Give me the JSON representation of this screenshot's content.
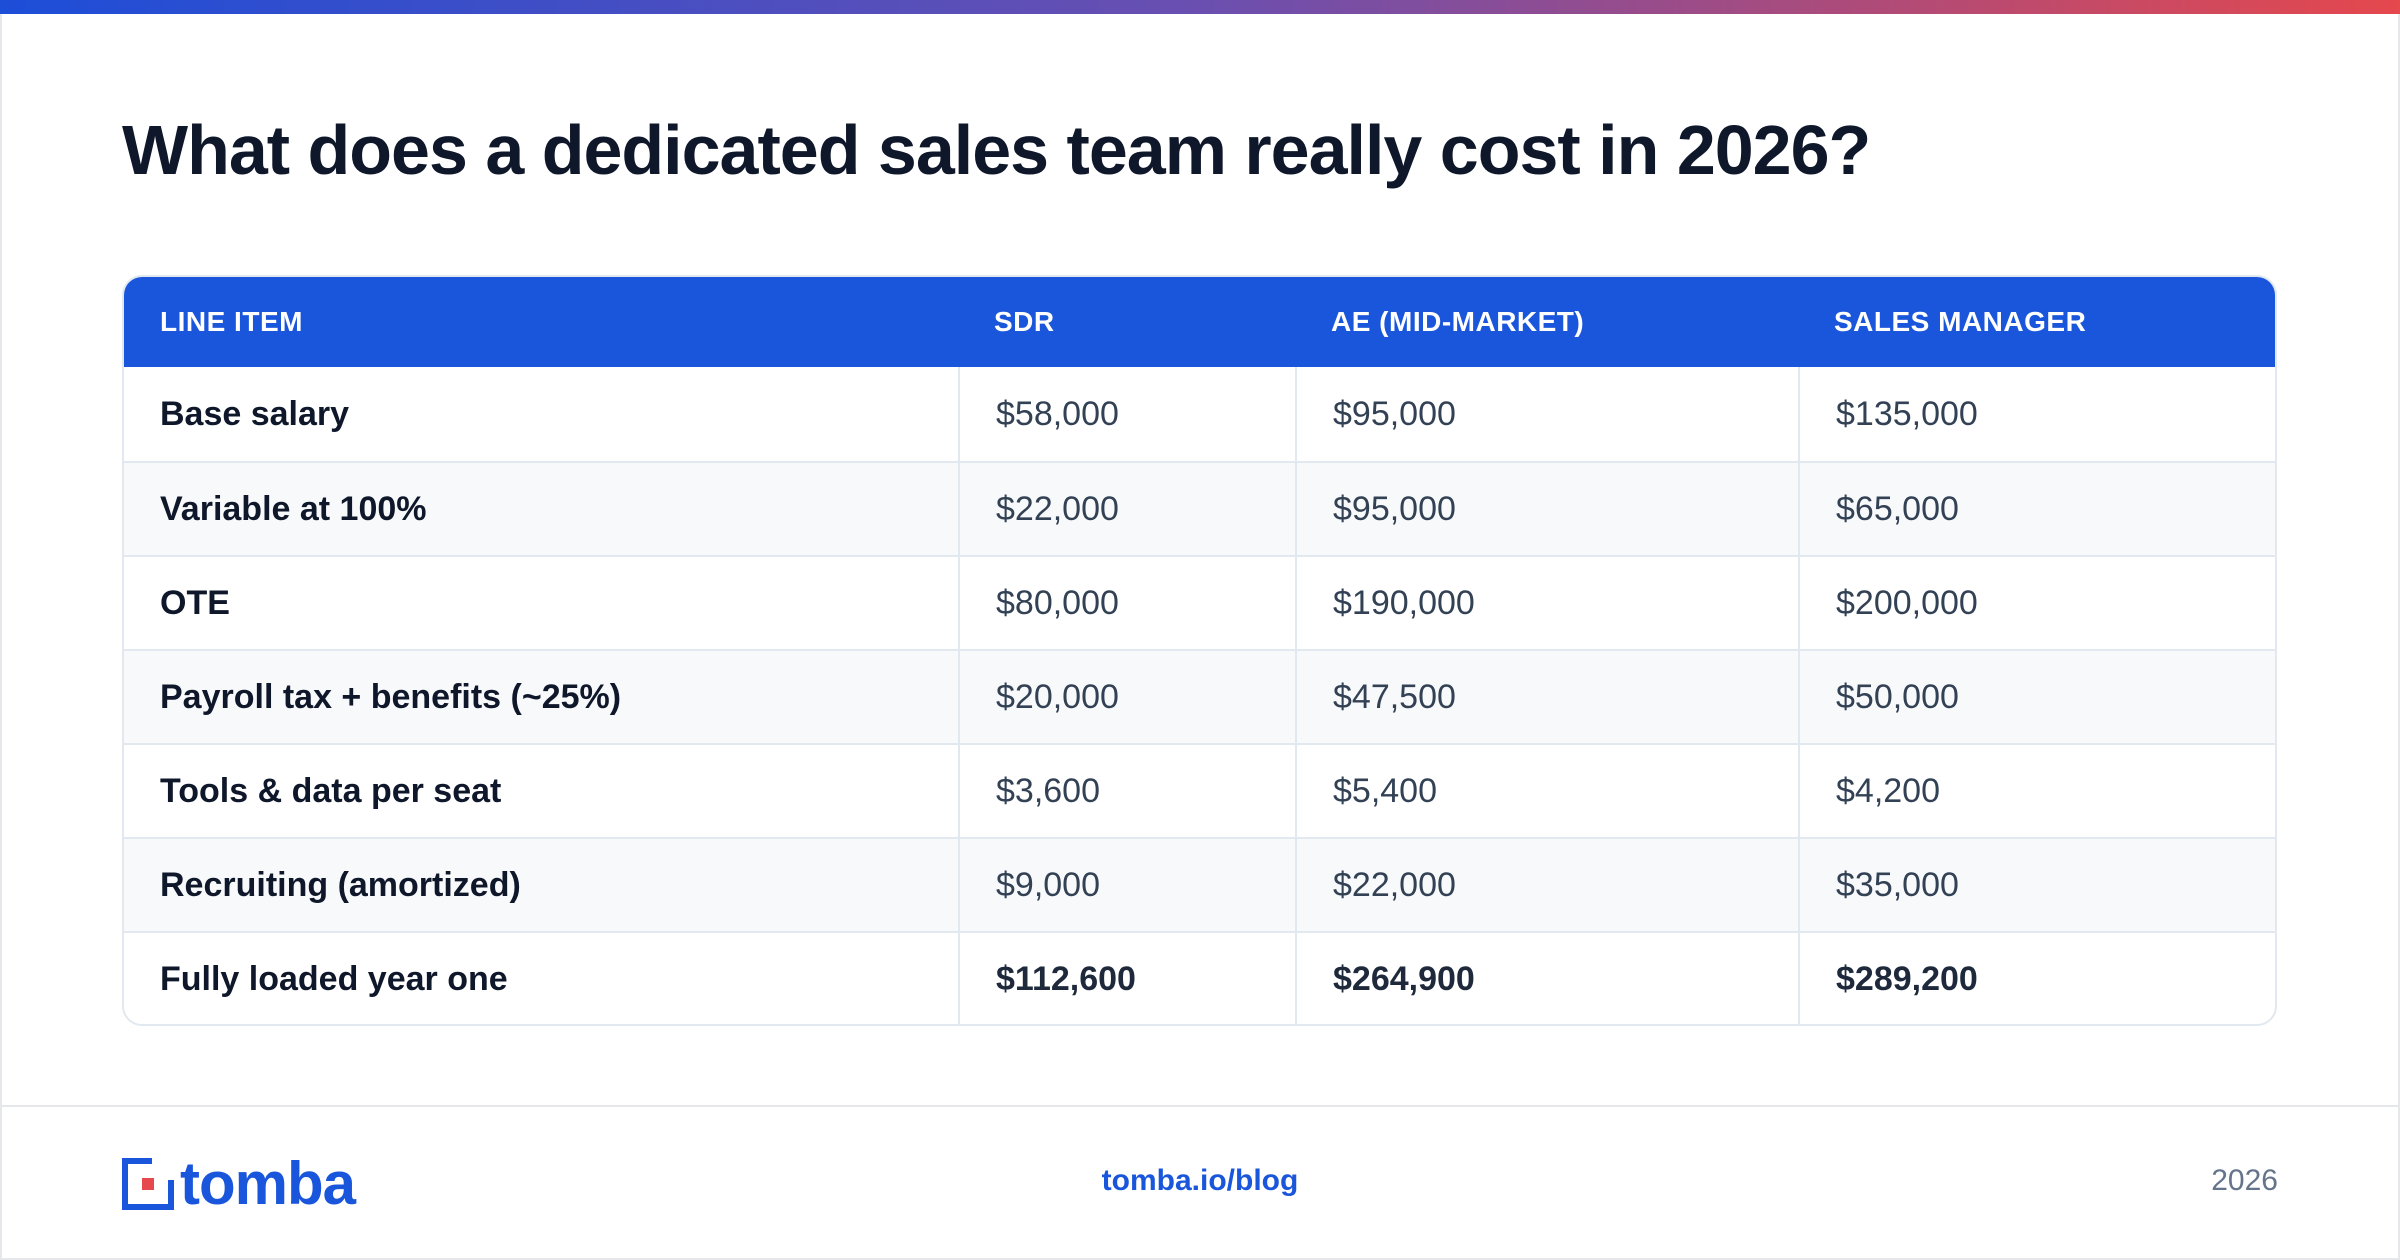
{
  "title": "What does a dedicated sales team really cost in 2026?",
  "table": {
    "headers": [
      "LINE ITEM",
      "SDR",
      "AE (MID-MARKET)",
      "SALES MANAGER"
    ],
    "rows": [
      [
        "Base salary",
        "$58,000",
        "$95,000",
        "$135,000"
      ],
      [
        "Variable at 100%",
        "$22,000",
        "$95,000",
        "$65,000"
      ],
      [
        "OTE",
        "$80,000",
        "$190,000",
        "$200,000"
      ],
      [
        "Payroll tax + benefits (~25%)",
        "$20,000",
        "$47,500",
        "$50,000"
      ],
      [
        "Tools & data per seat",
        "$3,600",
        "$5,400",
        "$4,200"
      ],
      [
        "Recruiting (amortized)",
        "$9,000",
        "$22,000",
        "$35,000"
      ],
      [
        "Fully loaded year one",
        "$112,600",
        "$264,900",
        "$289,200"
      ]
    ]
  },
  "footer": {
    "logo_text": "tomba",
    "link": "tomba.io/blog",
    "year": "2026"
  },
  "colors": {
    "accent": "#1a56db",
    "gradient_start": "#1d4ed8",
    "gradient_end": "#e5484d"
  }
}
